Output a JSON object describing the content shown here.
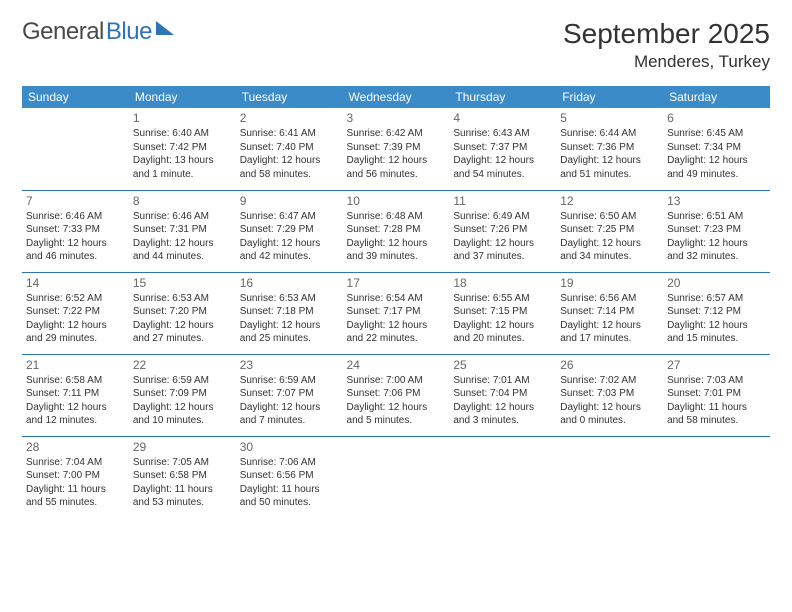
{
  "logo": {
    "text1": "General",
    "text2": "Blue"
  },
  "title": "September 2025",
  "location": "Menderes, Turkey",
  "colors": {
    "header_bg": "#3b8bc9",
    "header_text": "#ffffff",
    "rule": "#2e75b6",
    "text": "#333333",
    "daynum": "#666666",
    "logo_blue": "#2e75b6",
    "background": "#ffffff"
  },
  "fonts": {
    "title_size": 28,
    "location_size": 17,
    "header_size": 12,
    "daynum_size": 12,
    "cell_size": 10,
    "logo_size": 24
  },
  "weekdays": [
    "Sunday",
    "Monday",
    "Tuesday",
    "Wednesday",
    "Thursday",
    "Friday",
    "Saturday"
  ],
  "weeks": [
    [
      null,
      {
        "n": "1",
        "sr": "6:40 AM",
        "ss": "7:42 PM",
        "dl": "13 hours and 1 minute."
      },
      {
        "n": "2",
        "sr": "6:41 AM",
        "ss": "7:40 PM",
        "dl": "12 hours and 58 minutes."
      },
      {
        "n": "3",
        "sr": "6:42 AM",
        "ss": "7:39 PM",
        "dl": "12 hours and 56 minutes."
      },
      {
        "n": "4",
        "sr": "6:43 AM",
        "ss": "7:37 PM",
        "dl": "12 hours and 54 minutes."
      },
      {
        "n": "5",
        "sr": "6:44 AM",
        "ss": "7:36 PM",
        "dl": "12 hours and 51 minutes."
      },
      {
        "n": "6",
        "sr": "6:45 AM",
        "ss": "7:34 PM",
        "dl": "12 hours and 49 minutes."
      }
    ],
    [
      {
        "n": "7",
        "sr": "6:46 AM",
        "ss": "7:33 PM",
        "dl": "12 hours and 46 minutes."
      },
      {
        "n": "8",
        "sr": "6:46 AM",
        "ss": "7:31 PM",
        "dl": "12 hours and 44 minutes."
      },
      {
        "n": "9",
        "sr": "6:47 AM",
        "ss": "7:29 PM",
        "dl": "12 hours and 42 minutes."
      },
      {
        "n": "10",
        "sr": "6:48 AM",
        "ss": "7:28 PM",
        "dl": "12 hours and 39 minutes."
      },
      {
        "n": "11",
        "sr": "6:49 AM",
        "ss": "7:26 PM",
        "dl": "12 hours and 37 minutes."
      },
      {
        "n": "12",
        "sr": "6:50 AM",
        "ss": "7:25 PM",
        "dl": "12 hours and 34 minutes."
      },
      {
        "n": "13",
        "sr": "6:51 AM",
        "ss": "7:23 PM",
        "dl": "12 hours and 32 minutes."
      }
    ],
    [
      {
        "n": "14",
        "sr": "6:52 AM",
        "ss": "7:22 PM",
        "dl": "12 hours and 29 minutes."
      },
      {
        "n": "15",
        "sr": "6:53 AM",
        "ss": "7:20 PM",
        "dl": "12 hours and 27 minutes."
      },
      {
        "n": "16",
        "sr": "6:53 AM",
        "ss": "7:18 PM",
        "dl": "12 hours and 25 minutes."
      },
      {
        "n": "17",
        "sr": "6:54 AM",
        "ss": "7:17 PM",
        "dl": "12 hours and 22 minutes."
      },
      {
        "n": "18",
        "sr": "6:55 AM",
        "ss": "7:15 PM",
        "dl": "12 hours and 20 minutes."
      },
      {
        "n": "19",
        "sr": "6:56 AM",
        "ss": "7:14 PM",
        "dl": "12 hours and 17 minutes."
      },
      {
        "n": "20",
        "sr": "6:57 AM",
        "ss": "7:12 PM",
        "dl": "12 hours and 15 minutes."
      }
    ],
    [
      {
        "n": "21",
        "sr": "6:58 AM",
        "ss": "7:11 PM",
        "dl": "12 hours and 12 minutes."
      },
      {
        "n": "22",
        "sr": "6:59 AM",
        "ss": "7:09 PM",
        "dl": "12 hours and 10 minutes."
      },
      {
        "n": "23",
        "sr": "6:59 AM",
        "ss": "7:07 PM",
        "dl": "12 hours and 7 minutes."
      },
      {
        "n": "24",
        "sr": "7:00 AM",
        "ss": "7:06 PM",
        "dl": "12 hours and 5 minutes."
      },
      {
        "n": "25",
        "sr": "7:01 AM",
        "ss": "7:04 PM",
        "dl": "12 hours and 3 minutes."
      },
      {
        "n": "26",
        "sr": "7:02 AM",
        "ss": "7:03 PM",
        "dl": "12 hours and 0 minutes."
      },
      {
        "n": "27",
        "sr": "7:03 AM",
        "ss": "7:01 PM",
        "dl": "11 hours and 58 minutes."
      }
    ],
    [
      {
        "n": "28",
        "sr": "7:04 AM",
        "ss": "7:00 PM",
        "dl": "11 hours and 55 minutes."
      },
      {
        "n": "29",
        "sr": "7:05 AM",
        "ss": "6:58 PM",
        "dl": "11 hours and 53 minutes."
      },
      {
        "n": "30",
        "sr": "7:06 AM",
        "ss": "6:56 PM",
        "dl": "11 hours and 50 minutes."
      },
      null,
      null,
      null,
      null
    ]
  ],
  "labels": {
    "sunrise": "Sunrise: ",
    "sunset": "Sunset: ",
    "daylight": "Daylight: "
  }
}
